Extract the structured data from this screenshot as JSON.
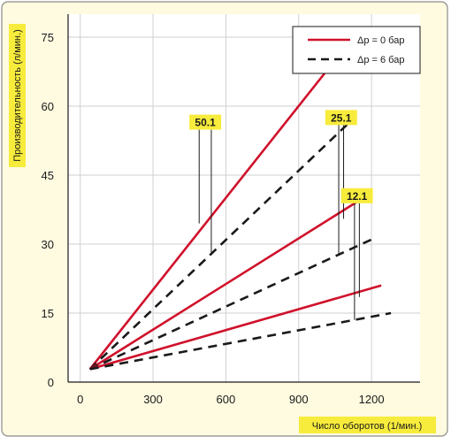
{
  "chart_data": {
    "type": "line",
    "xlabel": "Число оборотов (1/мин.)",
    "ylabel": "Производительность (л/мин.)",
    "xlim": [
      -50,
      1400
    ],
    "ylim": [
      0,
      80
    ],
    "x_ticks": [
      0,
      300,
      600,
      900,
      1200
    ],
    "y_ticks": [
      0,
      15,
      30,
      45,
      60,
      75
    ],
    "grid": true,
    "legend_position": "top-right",
    "legend": [
      {
        "label": "Δp = 0 бар",
        "style": "solid",
        "color": "#d0112b"
      },
      {
        "label": "Δp = 6 бар",
        "style": "dashed",
        "color": "#1a1a1a"
      }
    ],
    "series": [
      {
        "model": "50.1",
        "style": "solid",
        "color": "#d0112b",
        "points": [
          [
            40,
            2.8
          ],
          [
            1050,
            70
          ]
        ]
      },
      {
        "model": "50.1",
        "style": "dashed",
        "color": "#1a1a1a",
        "points": [
          [
            40,
            2.8
          ],
          [
            1120,
            57
          ]
        ]
      },
      {
        "model": "25.1",
        "style": "solid",
        "color": "#d0112b",
        "points": [
          [
            40,
            2.8
          ],
          [
            1180,
            40.5
          ]
        ]
      },
      {
        "model": "25.1",
        "style": "dashed",
        "color": "#1a1a1a",
        "points": [
          [
            40,
            2.8
          ],
          [
            1200,
            31
          ]
        ]
      },
      {
        "model": "12.1",
        "style": "solid",
        "color": "#d0112b",
        "points": [
          [
            40,
            2.8
          ],
          [
            1240,
            21
          ]
        ]
      },
      {
        "model": "12.1",
        "style": "dashed",
        "color": "#1a1a1a",
        "points": [
          [
            40,
            2.8
          ],
          [
            1280,
            15
          ]
        ]
      }
    ],
    "annotations": [
      {
        "text": "50.1",
        "leaders": [
          [
            490,
            34.5
          ],
          [
            540,
            28
          ]
        ]
      },
      {
        "text": "25.1",
        "leaders": [
          [
            1065,
            27.5
          ],
          [
            1085,
            35.5
          ]
        ]
      },
      {
        "text": "12.1",
        "leaders": [
          [
            1130,
            13.5
          ],
          [
            1150,
            18.5
          ]
        ]
      }
    ],
    "colors": {
      "background": "#fffbe0",
      "grid": "#cfcfcf",
      "label_highlight": "#f7ec3c",
      "border": "#8a8a8a"
    }
  }
}
